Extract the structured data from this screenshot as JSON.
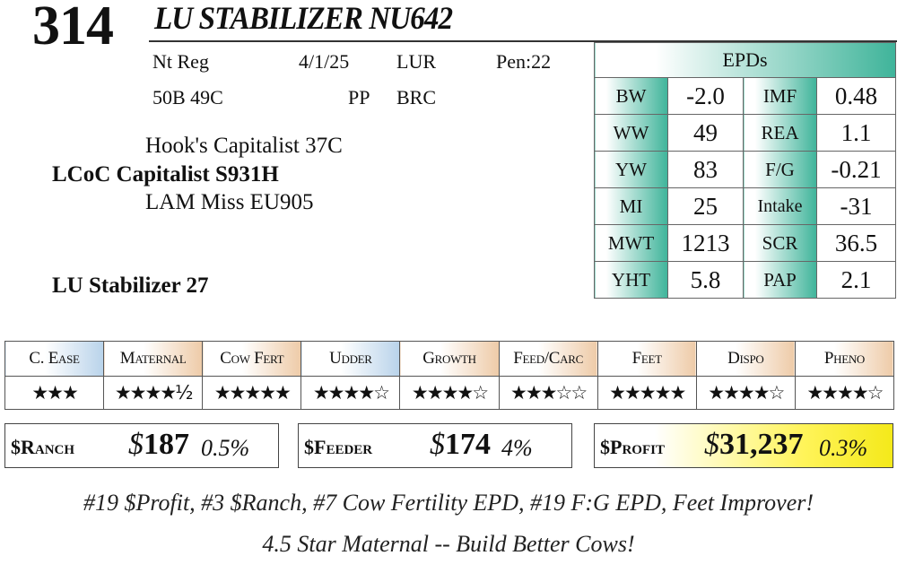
{
  "header": {
    "lot_number": "314",
    "bull_name": "LU STABILIZER NU642"
  },
  "info": {
    "registration": "Nt Reg",
    "birth_date": "4/1/25",
    "breeder_code": "LUR",
    "pen": "Pen:22",
    "markers": "50B 49C",
    "polled": "PP",
    "coat": "BRC"
  },
  "pedigree": {
    "sire_sire": "Hook's Capitalist 37C",
    "sire": "LCoC Capitalist S931H",
    "sire_dam": "LAM Miss EU905",
    "dam_sire": "LU Stabilizer 27"
  },
  "epds": {
    "title": "EPDs",
    "rows": [
      {
        "l1": "BW",
        "v1": "-2.0",
        "l2": "IMF",
        "v2": "0.48"
      },
      {
        "l1": "WW",
        "v1": "49",
        "l2": "REA",
        "v2": "1.1"
      },
      {
        "l1": "YW",
        "v1": "83",
        "l2": "F/G",
        "v2": "-0.21"
      },
      {
        "l1": "MI",
        "v1": "25",
        "l2": "Intake",
        "v2": "-31"
      },
      {
        "l1": "MWT",
        "v1": "1213",
        "l2": "SCR",
        "v2": "36.5"
      },
      {
        "l1": "YHT",
        "v1": "5.8",
        "l2": "PAP",
        "v2": "2.1"
      }
    ]
  },
  "ratings": [
    {
      "name": "C. Ease",
      "stars": "★★★",
      "score": 3
    },
    {
      "name": "Maternal",
      "stars": "★★★★½",
      "score": 4.5
    },
    {
      "name": "Cow Fert",
      "stars": "★★★★★",
      "score": 5
    },
    {
      "name": "Udder",
      "stars": "★★★★☆",
      "score": 4
    },
    {
      "name": "Growth",
      "stars": "★★★★☆",
      "score": 4
    },
    {
      "name": "Feed/Carc",
      "stars": "★★★☆☆",
      "score": 3
    },
    {
      "name": "Feet",
      "stars": "★★★★★",
      "score": 5
    },
    {
      "name": "Dispo",
      "stars": "★★★★☆",
      "score": 4
    },
    {
      "name": "Pheno",
      "stars": "★★★★☆",
      "score": 4
    }
  ],
  "indexes": {
    "ranch": {
      "label": "$Ranch",
      "dollar": "$",
      "value": "187",
      "pct": "0.5%"
    },
    "feeder": {
      "label": "$Feeder",
      "dollar": "$",
      "value": "174",
      "pct": "4%"
    },
    "profit": {
      "label": "$Profit",
      "dollar": "$",
      "value": "31,237",
      "pct": "0.3%"
    }
  },
  "notes": {
    "line1": "#19 $Profit, #3 $Ranch, #7 Cow Fertility EPD, #19 F:G EPD, Feet Improver!",
    "line2": "4.5 Star Maternal -- Build Better Cows!"
  },
  "colors": {
    "epd_accent": "#3fb49a",
    "rating_accent_orange": "#eecba8",
    "rating_accent_blue": "#b9d3ea",
    "profit_highlight": "#fff45a"
  }
}
